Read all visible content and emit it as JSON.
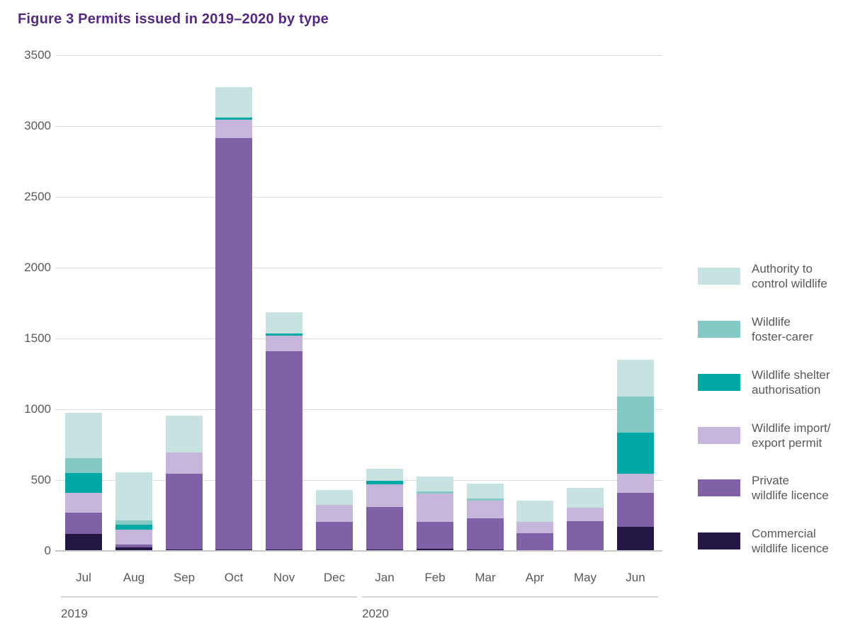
{
  "title": "Figure 3 Permits issued in 2019–2020 by type",
  "colors": {
    "title_text": "#562886",
    "axis_text": "#58595b",
    "gridline": "#dcdcdc",
    "baseline": "#c9c9c9"
  },
  "chart_data": {
    "type": "bar",
    "stacked": true,
    "title": "Figure 3 Permits issued in 2019–2020 by type",
    "xlabel": "",
    "ylabel": "",
    "ylim": [
      0,
      3500
    ],
    "yticks": [
      0,
      500,
      1000,
      1500,
      2000,
      2500,
      3000,
      3500
    ],
    "grid": "horizontal",
    "legend_position": "right",
    "categories": [
      "Jul",
      "Aug",
      "Sep",
      "Oct",
      "Nov",
      "Dec",
      "Jan",
      "Feb",
      "Mar",
      "Apr",
      "May",
      "Jun"
    ],
    "year_groups": [
      {
        "label": "2019",
        "from": "Jul",
        "to": "Dec"
      },
      {
        "label": "2020",
        "from": "Jan",
        "to": "Jun"
      }
    ],
    "series": [
      {
        "name": "Commercial wildlife licence",
        "color": "#241745",
        "values": [
          120,
          25,
          10,
          10,
          10,
          10,
          10,
          15,
          10,
          0,
          0,
          170
        ]
      },
      {
        "name": "Private wildlife licence",
        "color": "#7e61a6",
        "values": [
          150,
          20,
          535,
          2905,
          1400,
          195,
          300,
          190,
          220,
          125,
          210,
          240
        ]
      },
      {
        "name": "Wildlife import/export permit",
        "color": "#c6b6dc",
        "values": [
          140,
          105,
          150,
          130,
          110,
          120,
          160,
          200,
          125,
          80,
          95,
          135
        ]
      },
      {
        "name": "Wildlife shelter authorisation",
        "color": "#00a9a3",
        "values": [
          140,
          35,
          0,
          15,
          15,
          0,
          25,
          0,
          0,
          0,
          0,
          290
        ]
      },
      {
        "name": "Wildlife foster-carer",
        "color": "#85c9c4",
        "values": [
          105,
          30,
          0,
          0,
          0,
          0,
          0,
          15,
          15,
          0,
          0,
          255
        ]
      },
      {
        "name": "Authority to control wildlife",
        "color": "#c6e2e1",
        "values": [
          320,
          340,
          260,
          215,
          150,
          105,
          85,
          105,
          105,
          150,
          140,
          260
        ]
      }
    ],
    "legend": [
      {
        "name": "Authority to control wildlife",
        "lines": "Authority to\ncontrol wildlife"
      },
      {
        "name": "Wildlife foster-carer",
        "lines": "Wildlife\nfoster-carer"
      },
      {
        "name": "Wildlife shelter authorisation",
        "lines": "Wildlife shelter\nauthorisation"
      },
      {
        "name": "Wildlife import/export permit",
        "lines": "Wildlife import/\nexport permit"
      },
      {
        "name": "Private wildlife licence",
        "lines": "Private\nwildlife licence"
      },
      {
        "name": "Commercial wildlife licence",
        "lines": "Commercial\nwildlife licence"
      }
    ]
  }
}
